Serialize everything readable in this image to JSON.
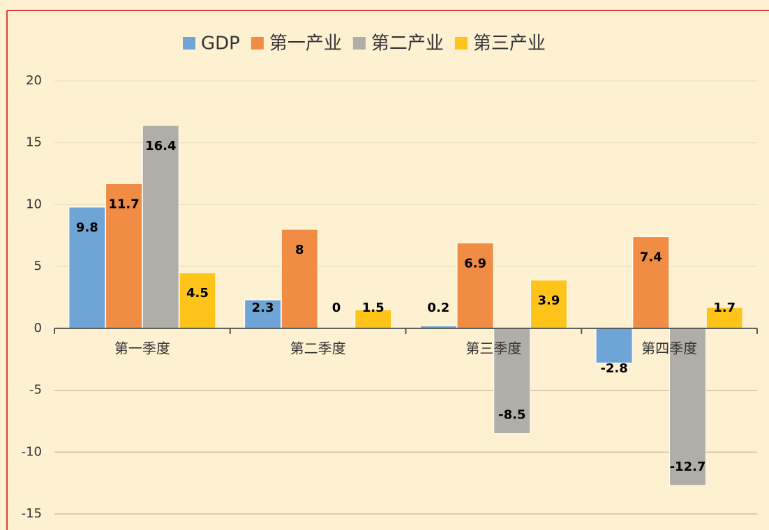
{
  "chart_data": {
    "type": "bar",
    "categories": [
      "第一季度",
      "第二季度",
      "第三季度",
      "第四季度"
    ],
    "series": [
      {
        "name": "GDP",
        "color": "#6fa5d6",
        "values": [
          9.8,
          2.3,
          0.2,
          -2.8
        ]
      },
      {
        "name": "第一产业",
        "color": "#f08c44",
        "values": [
          11.7,
          8,
          6.9,
          7.4
        ]
      },
      {
        "name": "第二产业",
        "color": "#b0aea7",
        "values": [
          16.4,
          0,
          -8.5,
          -12.7
        ]
      },
      {
        "name": "第三产业",
        "color": "#ffc41a",
        "values": [
          4.5,
          1.5,
          3.9,
          1.7
        ]
      }
    ],
    "ylim": [
      -15,
      20
    ],
    "yticks": [
      -15,
      -10,
      -5,
      0,
      5,
      10,
      15,
      20
    ],
    "grid": true,
    "legend": "top"
  }
}
